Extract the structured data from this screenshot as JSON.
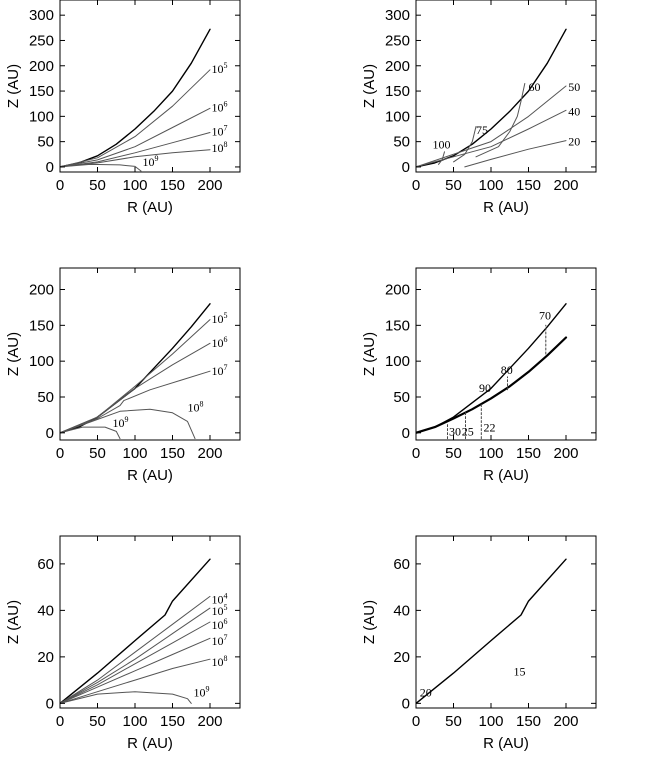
{
  "chart_data": [
    {
      "type": "line",
      "panel": "top-left",
      "xlabel": "R (AU)",
      "ylabel": "Z (AU)",
      "xlim": [
        0,
        240
      ],
      "ylim": [
        -10,
        330
      ],
      "xticks": [
        0,
        50,
        100,
        150,
        200
      ],
      "yticks": [
        0,
        50,
        100,
        150,
        200,
        250,
        300
      ],
      "series": [
        {
          "x": [
            0,
            25,
            50,
            75,
            100,
            125,
            150,
            175,
            200
          ],
          "y": [
            0,
            8,
            22,
            45,
            75,
            110,
            150,
            205,
            272
          ],
          "color": "#000000",
          "width": 1.4
        },
        {
          "x": [
            0,
            50,
            100,
            150,
            200
          ],
          "y": [
            0,
            18,
            60,
            120,
            192
          ],
          "color": "#555555",
          "width": 1,
          "label_base": "10",
          "label_exp": "5",
          "label_at": [
            202,
            186
          ]
        },
        {
          "x": [
            0,
            50,
            100,
            150,
            200
          ],
          "y": [
            0,
            14,
            40,
            78,
            116
          ],
          "color": "#555555",
          "width": 1,
          "label_base": "10",
          "label_exp": "6",
          "label_at": [
            202,
            110
          ]
        },
        {
          "x": [
            0,
            50,
            100,
            150,
            200
          ],
          "y": [
            0,
            10,
            28,
            48,
            68
          ],
          "color": "#555555",
          "width": 1,
          "label_base": "10",
          "label_exp": "7",
          "label_at": [
            202,
            62
          ]
        },
        {
          "x": [
            0,
            50,
            100,
            150,
            200
          ],
          "y": [
            0,
            8,
            20,
            28,
            34
          ],
          "color": "#555555",
          "width": 1,
          "label_base": "10",
          "label_exp": "8",
          "label_at": [
            202,
            30
          ]
        },
        {
          "x": [
            0,
            40,
            80,
            100,
            108
          ],
          "y": [
            0,
            5,
            4,
            1,
            -8
          ],
          "color": "#555555",
          "width": 1,
          "label_base": "10",
          "label_exp": "9",
          "label_at": [
            110,
            2
          ]
        }
      ]
    },
    {
      "type": "line",
      "panel": "top-right",
      "xlabel": "R (AU)",
      "ylabel": "Z (AU)",
      "xlim": [
        0,
        240
      ],
      "ylim": [
        -10,
        330
      ],
      "xticks": [
        0,
        50,
        100,
        150,
        200
      ],
      "yticks": [
        0,
        50,
        100,
        150,
        200,
        250,
        300
      ],
      "series": [
        {
          "x": [
            0,
            25,
            50,
            75,
            100,
            125,
            150,
            175,
            200
          ],
          "y": [
            0,
            8,
            22,
            45,
            75,
            110,
            150,
            205,
            272
          ],
          "color": "#000000",
          "width": 1.4
        },
        {
          "x": [
            0,
            100,
            150,
            200
          ],
          "y": [
            0,
            50,
            100,
            160
          ],
          "color": "#555555",
          "width": 1,
          "label_base": "50",
          "label_at": [
            203,
            150
          ]
        },
        {
          "x": [
            0,
            100,
            150,
            200
          ],
          "y": [
            0,
            40,
            75,
            112
          ],
          "color": "#555555",
          "width": 1,
          "label_base": "40",
          "label_at": [
            203,
            102
          ]
        },
        {
          "x": [
            65,
            100,
            150,
            200
          ],
          "y": [
            0,
            15,
            35,
            52
          ],
          "color": "#555555",
          "width": 1,
          "label_base": "20",
          "label_at": [
            203,
            42
          ]
        },
        {
          "x": [
            80,
            110,
            125,
            135,
            140,
            145
          ],
          "y": [
            20,
            40,
            70,
            100,
            130,
            165
          ],
          "color": "#555555",
          "width": 1,
          "label_base": "60",
          "label_at": [
            150,
            150
          ]
        },
        {
          "x": [
            50,
            65,
            75,
            80
          ],
          "y": [
            10,
            25,
            50,
            80
          ],
          "color": "#555555",
          "width": 1,
          "label_base": "75",
          "label_at": [
            80,
            65
          ]
        },
        {
          "x": [
            30,
            35,
            38
          ],
          "y": [
            5,
            15,
            30
          ],
          "color": "#555555",
          "width": 1,
          "label_base": "100",
          "label_at": [
            22,
            36
          ]
        }
      ]
    },
    {
      "type": "line",
      "panel": "middle-left",
      "xlabel": "R (AU)",
      "ylabel": "Z (AU)",
      "xlim": [
        0,
        240
      ],
      "ylim": [
        -10,
        230
      ],
      "xticks": [
        0,
        50,
        100,
        150,
        200
      ],
      "yticks": [
        0,
        50,
        100,
        150,
        200
      ],
      "series": [
        {
          "x": [
            0,
            25,
            50,
            75,
            100,
            125,
            150,
            175,
            200
          ],
          "y": [
            0,
            8,
            22,
            42,
            62,
            90,
            118,
            148,
            180
          ],
          "color": "#000000",
          "width": 1.4
        },
        {
          "x": [
            0,
            50,
            100,
            150,
            200
          ],
          "y": [
            0,
            22,
            65,
            110,
            158
          ],
          "color": "#555555",
          "width": 1,
          "label_base": "10",
          "label_exp": "5",
          "label_at": [
            202,
            153
          ]
        },
        {
          "x": [
            0,
            50,
            100,
            150,
            200
          ],
          "y": [
            0,
            22,
            62,
            95,
            125
          ],
          "color": "#555555",
          "width": 1,
          "label_base": "10",
          "label_exp": "6",
          "label_at": [
            202,
            120
          ]
        },
        {
          "x": [
            0,
            50,
            80,
            85,
            120,
            160,
            200
          ],
          "y": [
            0,
            20,
            38,
            45,
            60,
            73,
            86
          ],
          "color": "#555555",
          "width": 1,
          "label_base": "10",
          "label_exp": "7",
          "label_at": [
            202,
            81
          ]
        },
        {
          "x": [
            0,
            40,
            80,
            120,
            150,
            170,
            180
          ],
          "y": [
            0,
            15,
            30,
            33,
            28,
            16,
            -8
          ],
          "color": "#555555",
          "width": 1,
          "label_base": "10",
          "label_exp": "8",
          "label_at": [
            170,
            30
          ]
        },
        {
          "x": [
            0,
            30,
            60,
            75,
            80
          ],
          "y": [
            0,
            8,
            8,
            2,
            -8
          ],
          "color": "#555555",
          "width": 1,
          "label_base": "10",
          "label_exp": "9",
          "label_at": [
            70,
            8
          ]
        }
      ]
    },
    {
      "type": "line",
      "panel": "middle-right",
      "xlabel": "R (AU)",
      "ylabel": "Z (AU)",
      "xlim": [
        0,
        240
      ],
      "ylim": [
        -10,
        230
      ],
      "xticks": [
        0,
        50,
        100,
        150,
        200
      ],
      "yticks": [
        0,
        50,
        100,
        150,
        200
      ],
      "series": [
        {
          "x": [
            0,
            25,
            50,
            75,
            100,
            125,
            150,
            175,
            200
          ],
          "y": [
            0,
            8,
            22,
            42,
            62,
            90,
            118,
            148,
            180
          ],
          "color": "#000000",
          "width": 1.4
        },
        {
          "x": [
            0,
            25,
            50,
            75,
            100,
            125,
            150,
            175,
            200
          ],
          "y": [
            0,
            8,
            20,
            33,
            48,
            65,
            85,
            108,
            133
          ],
          "color": "#000000",
          "width": 2.2
        },
        {
          "x": [
            87,
            87
          ],
          "y": [
            -8,
            40
          ],
          "color": "#444444",
          "width": 1,
          "dash": "2,2",
          "label_base": "22",
          "label_at": [
            90,
            2
          ]
        },
        {
          "x": [
            66,
            66
          ],
          "y": [
            -8,
            30
          ],
          "color": "#444444",
          "width": 1,
          "dash": "2,2",
          "label_base": "25",
          "label_at": [
            61,
            -4
          ]
        },
        {
          "x": [
            42,
            42
          ],
          "y": [
            -8,
            14
          ],
          "color": "#444444",
          "width": 1,
          "dash": "2,2",
          "label_base": "30",
          "label_at": [
            44,
            -4
          ]
        },
        {
          "x": [
            122,
            122
          ],
          "y": [
            60,
            78
          ],
          "color": "#444444",
          "width": 1,
          "dash": "2,2",
          "label_base": "80",
          "label_at": [
            113,
            82
          ]
        },
        {
          "x": [
            173,
            173
          ],
          "y": [
            110,
            150
          ],
          "color": "#444444",
          "width": 1,
          "dash": "2,2",
          "label_base": "70",
          "label_at": [
            164,
            158
          ]
        },
        {
          "x": [],
          "y": [],
          "color": "#444444",
          "width": 1,
          "label_base": "90",
          "label_at": [
            84,
            57
          ]
        }
      ]
    },
    {
      "type": "line",
      "panel": "bottom-left",
      "xlabel": "R (AU)",
      "ylabel": "Z (AU)",
      "xlim": [
        0,
        240
      ],
      "ylim": [
        -2,
        72
      ],
      "xticks": [
        0,
        50,
        100,
        150,
        200
      ],
      "yticks": [
        0,
        20,
        40,
        60
      ],
      "series": [
        {
          "x": [
            0,
            50,
            100,
            140,
            150,
            200
          ],
          "y": [
            0,
            13,
            27,
            38,
            44,
            62
          ],
          "color": "#000000",
          "width": 1.4
        },
        {
          "x": [
            0,
            50,
            100,
            150,
            200
          ],
          "y": [
            0,
            10,
            22,
            34,
            46
          ],
          "color": "#555555",
          "width": 1,
          "label_base": "10",
          "label_exp": "4",
          "label_at": [
            202,
            43
          ]
        },
        {
          "x": [
            0,
            50,
            100,
            150,
            200
          ],
          "y": [
            0,
            9,
            19,
            30,
            41
          ],
          "color": "#555555",
          "width": 1,
          "label_base": "10",
          "label_exp": "5",
          "label_at": [
            202,
            38
          ]
        },
        {
          "x": [
            0,
            50,
            100,
            150,
            200
          ],
          "y": [
            0,
            8,
            17,
            26,
            35
          ],
          "color": "#555555",
          "width": 1,
          "label_base": "10",
          "label_exp": "6",
          "label_at": [
            202,
            32
          ]
        },
        {
          "x": [
            0,
            50,
            100,
            150,
            200
          ],
          "y": [
            0,
            7,
            14,
            21,
            28
          ],
          "color": "#555555",
          "width": 1,
          "label_base": "10",
          "label_exp": "7",
          "label_at": [
            202,
            25
          ]
        },
        {
          "x": [
            0,
            50,
            100,
            150,
            200
          ],
          "y": [
            0,
            5,
            10,
            15,
            19
          ],
          "color": "#555555",
          "width": 1,
          "label_base": "10",
          "label_exp": "8",
          "label_at": [
            202,
            16
          ]
        },
        {
          "x": [
            0,
            50,
            100,
            150,
            170,
            175
          ],
          "y": [
            0,
            4,
            5,
            4,
            2,
            0
          ],
          "color": "#555555",
          "width": 1,
          "label_base": "10",
          "label_exp": "9",
          "label_at": [
            178,
            3
          ]
        }
      ]
    },
    {
      "type": "line",
      "panel": "bottom-right",
      "xlabel": "R (AU)",
      "ylabel": "Z (AU)",
      "xlim": [
        0,
        240
      ],
      "ylim": [
        -2,
        72
      ],
      "xticks": [
        0,
        50,
        100,
        150,
        200
      ],
      "yticks": [
        0,
        20,
        40,
        60
      ],
      "series": [
        {
          "x": [
            0,
            50,
            100,
            140,
            150,
            200
          ],
          "y": [
            0,
            13,
            27,
            38,
            44,
            62
          ],
          "color": "#000000",
          "width": 1.4
        },
        {
          "x": [],
          "y": [],
          "color": "#000000",
          "width": 1,
          "label_base": "20",
          "label_at": [
            5,
            3
          ]
        },
        {
          "x": [],
          "y": [],
          "color": "#000000",
          "width": 1,
          "label_base": "15",
          "label_at": [
            130,
            12
          ]
        }
      ]
    }
  ]
}
